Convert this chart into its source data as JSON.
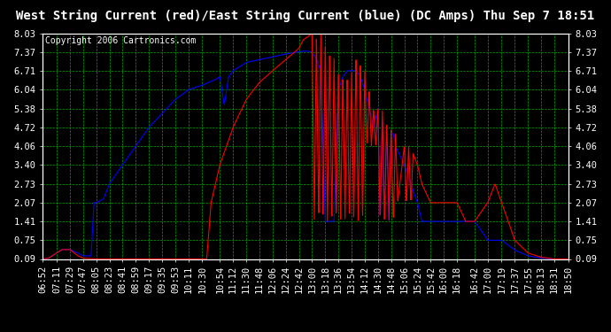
{
  "title": "West String Current (red)/East String Current (blue) (DC Amps) Thu Sep 7 18:51",
  "copyright": "Copyright 2006 Cartronics.com",
  "background_color": "#000000",
  "plot_bg_color": "#000000",
  "grid_color": "#00aa00",
  "x_tick_labels": [
    "06:52",
    "07:11",
    "07:29",
    "07:47",
    "08:05",
    "08:23",
    "08:41",
    "08:59",
    "09:17",
    "09:35",
    "09:53",
    "10:11",
    "10:30",
    "10:54",
    "11:12",
    "11:30",
    "11:48",
    "12:06",
    "12:24",
    "12:42",
    "13:00",
    "13:18",
    "13:36",
    "13:54",
    "14:12",
    "14:30",
    "14:48",
    "15:06",
    "15:24",
    "15:42",
    "16:00",
    "16:18",
    "16:42",
    "17:00",
    "17:19",
    "17:37",
    "17:55",
    "18:13",
    "18:31",
    "18:50"
  ],
  "y_tick_labels": [
    "0.09",
    "0.75",
    "1.41",
    "2.07",
    "2.73",
    "3.40",
    "4.06",
    "4.72",
    "5.38",
    "6.04",
    "6.71",
    "7.37",
    "8.03"
  ],
  "y_tick_values": [
    0.09,
    0.75,
    1.41,
    2.07,
    2.73,
    3.4,
    4.06,
    4.72,
    5.38,
    6.04,
    6.71,
    7.37,
    8.03
  ],
  "ylim": [
    0.09,
    8.03
  ],
  "red_line_color": "#ff0000",
  "blue_line_color": "#0000ff",
  "title_color": "#ffffff",
  "label_color": "#ffffff",
  "title_fontsize": 10,
  "tick_fontsize": 7.5,
  "copyright_fontsize": 7
}
